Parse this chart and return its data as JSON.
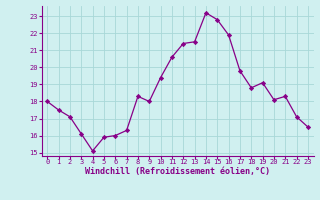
{
  "x": [
    0,
    1,
    2,
    3,
    4,
    5,
    6,
    7,
    8,
    9,
    10,
    11,
    12,
    13,
    14,
    15,
    16,
    17,
    18,
    19,
    20,
    21,
    22,
    23
  ],
  "y": [
    18.0,
    17.5,
    17.1,
    16.1,
    15.1,
    15.9,
    16.0,
    16.3,
    18.3,
    18.0,
    19.4,
    20.6,
    21.4,
    21.5,
    23.2,
    22.8,
    21.9,
    19.8,
    18.8,
    19.1,
    18.1,
    18.3,
    17.1,
    16.5
  ],
  "line_color": "#880088",
  "marker": "D",
  "marker_size": 2.2,
  "bg_color": "#d0f0f0",
  "grid_color": "#a8d8d8",
  "xlabel": "Windchill (Refroidissement éolien,°C)",
  "xlabel_color": "#880088",
  "tick_color": "#880088",
  "ylim": [
    14.8,
    23.6
  ],
  "xlim": [
    -0.5,
    23.5
  ],
  "yticks": [
    15,
    16,
    17,
    18,
    19,
    20,
    21,
    22,
    23
  ],
  "xticks": [
    0,
    1,
    2,
    3,
    4,
    5,
    6,
    7,
    8,
    9,
    10,
    11,
    12,
    13,
    14,
    15,
    16,
    17,
    18,
    19,
    20,
    21,
    22,
    23
  ],
  "tick_fontsize": 5.0,
  "xlabel_fontsize": 6.0,
  "ylabel_fontsize": 6.0
}
